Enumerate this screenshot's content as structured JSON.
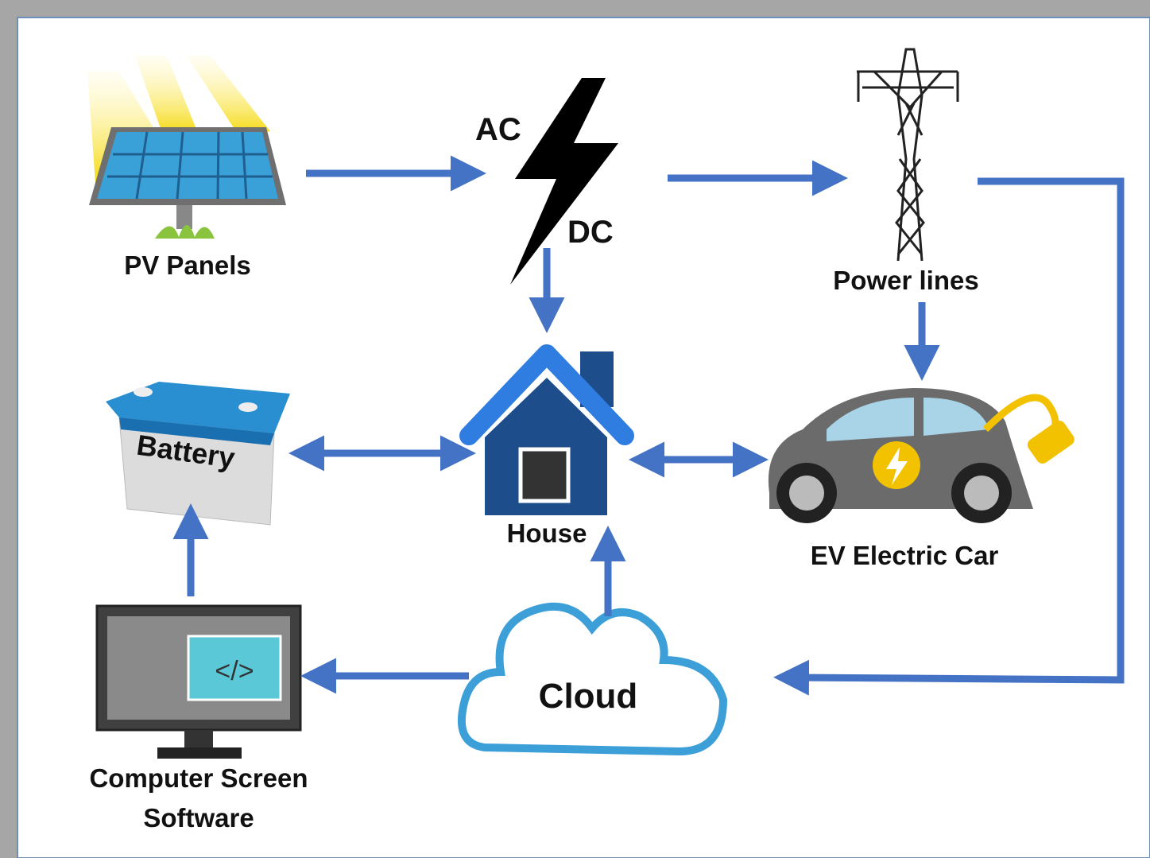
{
  "pv_panels": {
    "label": "PV Panels"
  },
  "inverter": {
    "ac": "AC",
    "dc": "DC"
  },
  "power_lines": {
    "label": "Power lines"
  },
  "battery": {
    "label": "Battery"
  },
  "house": {
    "label": "House"
  },
  "ev": {
    "label": "EV Electric Car"
  },
  "computer": {
    "lines": [
      "Computer Screen",
      "Software"
    ]
  },
  "cloud": {
    "label": "Cloud"
  }
}
